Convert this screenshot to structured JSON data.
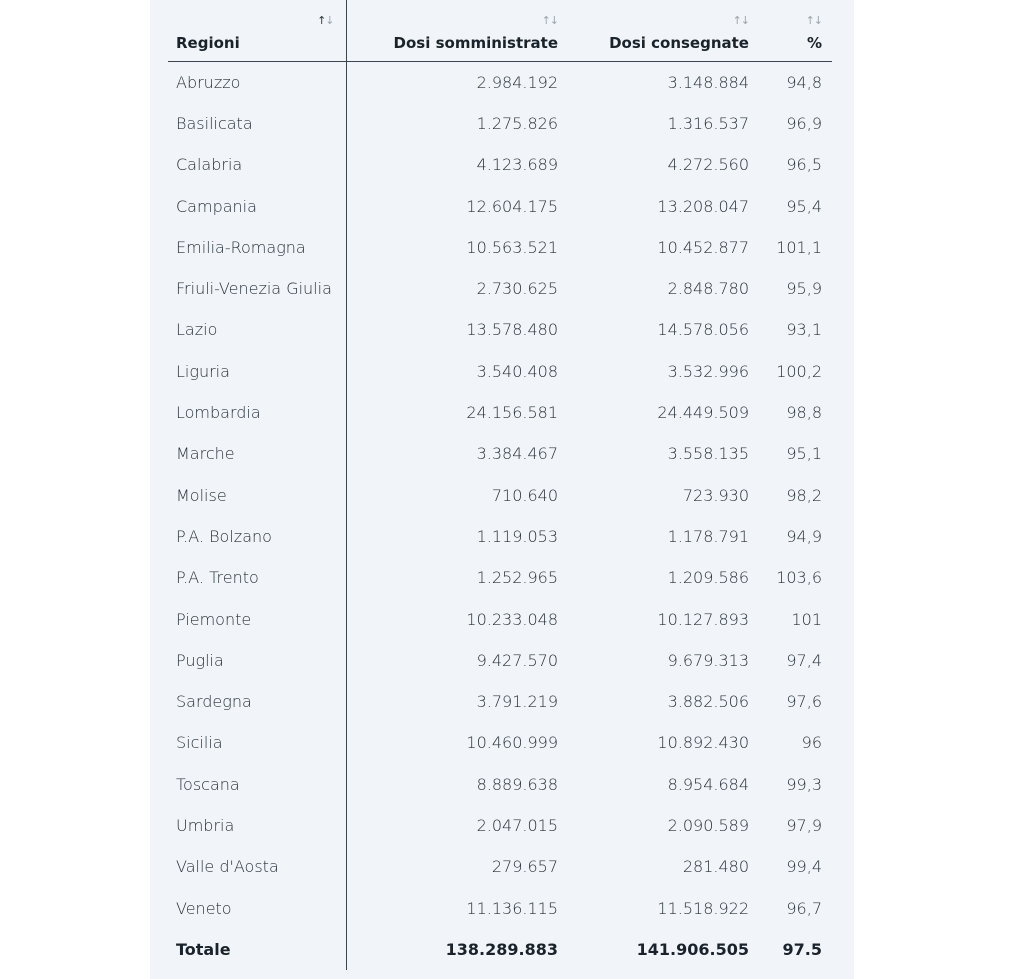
{
  "table": {
    "headers": {
      "region": "Regioni",
      "administered": "Dosi somministrate",
      "delivered": "Dosi consegnate",
      "percent": "%"
    },
    "sort_icon_up": "↑",
    "sort_icon_down": "↓",
    "rows": [
      {
        "region": "Abruzzo",
        "administered": "2.984.192",
        "delivered": "3.148.884",
        "percent": "94,8"
      },
      {
        "region": "Basilicata",
        "administered": "1.275.826",
        "delivered": "1.316.537",
        "percent": "96,9"
      },
      {
        "region": "Calabria",
        "administered": "4.123.689",
        "delivered": "4.272.560",
        "percent": "96,5"
      },
      {
        "region": "Campania",
        "administered": "12.604.175",
        "delivered": "13.208.047",
        "percent": "95,4"
      },
      {
        "region": "Emilia-Romagna",
        "administered": "10.563.521",
        "delivered": "10.452.877",
        "percent": "101,1"
      },
      {
        "region": "Friuli-Venezia Giulia",
        "administered": "2.730.625",
        "delivered": "2.848.780",
        "percent": "95,9"
      },
      {
        "region": "Lazio",
        "administered": "13.578.480",
        "delivered": "14.578.056",
        "percent": "93,1"
      },
      {
        "region": "Liguria",
        "administered": "3.540.408",
        "delivered": "3.532.996",
        "percent": "100,2"
      },
      {
        "region": "Lombardia",
        "administered": "24.156.581",
        "delivered": "24.449.509",
        "percent": "98,8"
      },
      {
        "region": "Marche",
        "administered": "3.384.467",
        "delivered": "3.558.135",
        "percent": "95,1"
      },
      {
        "region": "Molise",
        "administered": "710.640",
        "delivered": "723.930",
        "percent": "98,2"
      },
      {
        "region": "P.A. Bolzano",
        "administered": "1.119.053",
        "delivered": "1.178.791",
        "percent": "94,9"
      },
      {
        "region": "P.A. Trento",
        "administered": "1.252.965",
        "delivered": "1.209.586",
        "percent": "103,6"
      },
      {
        "region": "Piemonte",
        "administered": "10.233.048",
        "delivered": "10.127.893",
        "percent": "101"
      },
      {
        "region": "Puglia",
        "administered": "9.427.570",
        "delivered": "9.679.313",
        "percent": "97,4"
      },
      {
        "region": "Sardegna",
        "administered": "3.791.219",
        "delivered": "3.882.506",
        "percent": "97,6"
      },
      {
        "region": "Sicilia",
        "administered": "10.460.999",
        "delivered": "10.892.430",
        "percent": "96"
      },
      {
        "region": "Toscana",
        "administered": "8.889.638",
        "delivered": "8.954.684",
        "percent": "99,3"
      },
      {
        "region": "Umbria",
        "administered": "2.047.015",
        "delivered": "2.090.589",
        "percent": "97,9"
      },
      {
        "region": "Valle d'Aosta",
        "administered": "279.657",
        "delivered": "281.480",
        "percent": "99,4"
      },
      {
        "region": "Veneto",
        "administered": "11.136.115",
        "delivered": "11.518.922",
        "percent": "96,7"
      }
    ],
    "total": {
      "label": "Totale",
      "administered": "138.289.883",
      "delivered": "141.906.505",
      "percent": "97.5"
    }
  }
}
